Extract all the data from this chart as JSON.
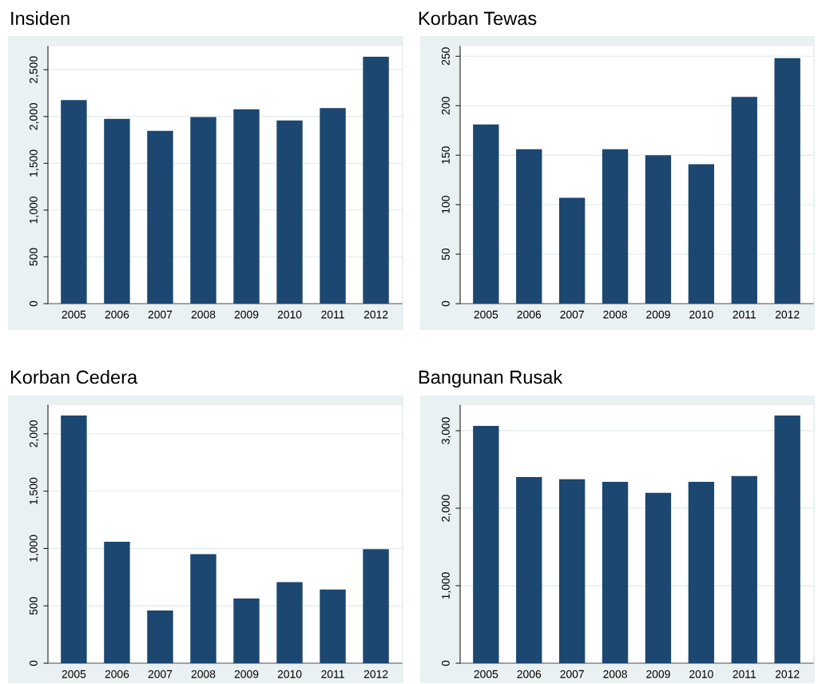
{
  "chart_data": [
    {
      "type": "bar",
      "title": "Insiden",
      "categories": [
        "2005",
        "2006",
        "2007",
        "2008",
        "2009",
        "2010",
        "2011",
        "2012"
      ],
      "values": [
        2176,
        1974,
        1847,
        1994,
        2077,
        1957,
        2091,
        2639
      ],
      "color": "#1c4770",
      "ylim": [
        0,
        2750
      ],
      "yticks": [
        0,
        500,
        {
          "value": 1000,
          "label": "1,000"
        },
        {
          "value": 1500,
          "label": "1,500"
        },
        {
          "value": 2000,
          "label": "2,000"
        },
        {
          "value": 2500,
          "label": "2,500"
        }
      ],
      "grid": "y"
    },
    {
      "type": "bar",
      "title": "Korban Tewas",
      "categories": [
        "2005",
        "2006",
        "2007",
        "2008",
        "2009",
        "2010",
        "2011",
        "2012"
      ],
      "values": [
        181,
        156,
        107,
        156,
        150,
        141,
        209,
        248
      ],
      "color": "#1c4770",
      "ylim": [
        0,
        260
      ],
      "yticks": [
        0,
        50,
        100,
        150,
        200,
        250
      ],
      "grid": "y"
    },
    {
      "type": "bar",
      "title": "Korban Cedera",
      "categories": [
        "2005",
        "2006",
        "2007",
        "2008",
        "2009",
        "2010",
        "2011",
        "2012"
      ],
      "values": [
        2160,
        1058,
        460,
        951,
        565,
        707,
        642,
        995
      ],
      "color": "#1c4770",
      "ylim": [
        0,
        2250
      ],
      "yticks": [
        0,
        500,
        {
          "value": 1000,
          "label": "1,000"
        },
        {
          "value": 1500,
          "label": "1,500"
        },
        {
          "value": 2000,
          "label": "2,000"
        }
      ],
      "grid": "y"
    },
    {
      "type": "bar",
      "title": "Bangunan Rusak",
      "categories": [
        "2005",
        "2006",
        "2007",
        "2008",
        "2009",
        "2010",
        "2011",
        "2012"
      ],
      "values": [
        3062,
        2401,
        2374,
        2339,
        2198,
        2339,
        2415,
        3196
      ],
      "color": "#1c4770",
      "ylim": [
        0,
        3330
      ],
      "yticks": [
        0,
        {
          "value": 1000,
          "label": "1,000"
        },
        {
          "value": 2000,
          "label": "2,000"
        },
        {
          "value": 3000,
          "label": "3,000"
        }
      ],
      "grid": "y"
    }
  ]
}
